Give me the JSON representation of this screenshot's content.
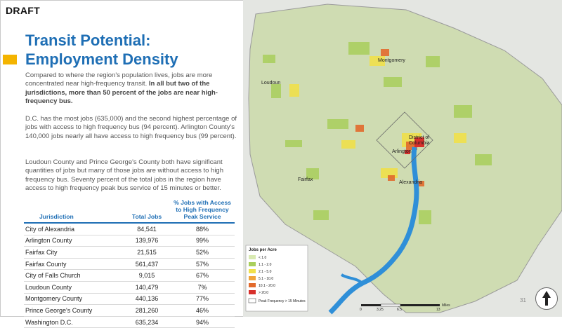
{
  "draft_label": "DRAFT",
  "title_line1": "Transit Potential:",
  "title_line2": "Employment Density",
  "para1_plain": "Compared to where the region's population lives, jobs are more concentrated near high-frequency transit. ",
  "para1_bold": "In all but two of the jurisdictions, more than 50 percent of the jobs are near high-frequency bus.",
  "para2": "D.C. has the most jobs (635,000) and the second highest percentage of jobs with access to high frequency bus (94 percent). Arlington County's 140,000 jobs nearly all have access to high frequency bus (99 percent).",
  "para3": "Loudoun County and Prince George's County both have significant quantities of jobs but many of those jobs are without access to high frequency bus. Seventy percent of the total jobs in the region have access to high frequency peak bus service of 15 minutes or better.",
  "table": {
    "headers": [
      "Jurisdiction",
      "Total Jobs",
      "% Jobs with Access to High Frequency Peak Service"
    ],
    "rows": [
      [
        "City of Alexandria",
        "84,541",
        "88%"
      ],
      [
        "Arlington County",
        "139,976",
        "99%"
      ],
      [
        "Fairfax City",
        "21,515",
        "52%"
      ],
      [
        "Fairfax County",
        "561,437",
        "57%"
      ],
      [
        "City of Falls Church",
        "9,015",
        "67%"
      ],
      [
        "Loudoun County",
        "140,479",
        "7%"
      ],
      [
        "Montgomery County",
        "440,136",
        "77%"
      ],
      [
        "Prince George's County",
        "281,260",
        "46%"
      ],
      [
        "Washington D.C.",
        "635,234",
        "94%"
      ]
    ]
  },
  "map": {
    "labels": {
      "montgomery": "Montgomery",
      "loudoun": "Loudoun",
      "dc_line1": "District of",
      "dc_line2": "Columbia",
      "arlington": "Arlington",
      "fairfax": "Fairfax",
      "alexandria": "Alexandria"
    },
    "legend": {
      "title": "Jobs per Acre",
      "items": [
        {
          "label": "< 1.0",
          "color": "#d9eab2"
        },
        {
          "label": "1.1 - 2.0",
          "color": "#a9cf5c"
        },
        {
          "label": "2.1 - 5.0",
          "color": "#f0e04a"
        },
        {
          "label": "5.1 - 10.0",
          "color": "#f0a43a"
        },
        {
          "label": "10.1 - 20.0",
          "color": "#e26a2c"
        },
        {
          "label": "> 20.0",
          "color": "#d7302c"
        }
      ],
      "frequency_label": "Peak Frequency > 15 Minutes"
    },
    "scale": {
      "ticks": [
        "0",
        "3.25",
        "6.5",
        "13"
      ],
      "unit": "Miles"
    }
  },
  "page_number": "31",
  "colors": {
    "title": "#1f6fb5",
    "accent": "#f4b400",
    "map_land": "#cfdcb2",
    "water": "#2f8fd8"
  }
}
